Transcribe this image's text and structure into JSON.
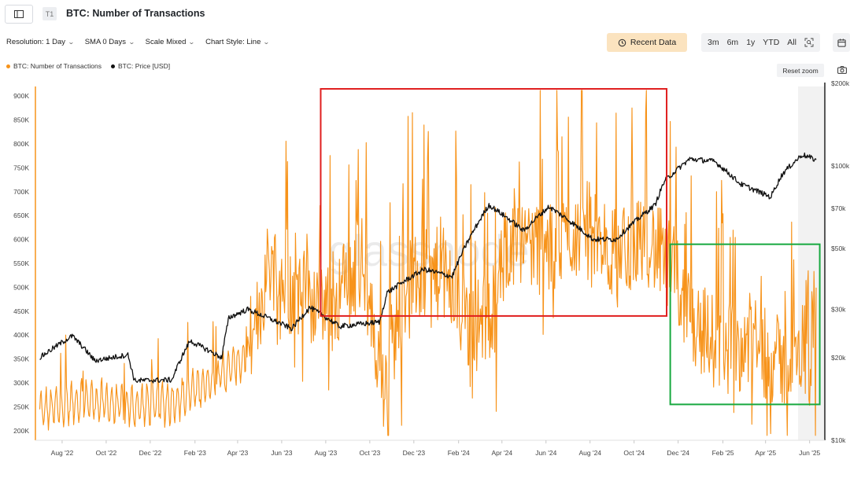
{
  "header": {
    "tier_badge": "T1",
    "title": "BTC: Number of Transactions"
  },
  "controls": {
    "resolution": "Resolution: 1 Day",
    "sma": "SMA 0 Days",
    "scale": "Scale Mixed",
    "chart_style": "Chart Style: Line"
  },
  "recent_data_label": "Recent Data",
  "ranges": [
    "3m",
    "6m",
    "1y",
    "YTD",
    "All"
  ],
  "reset_zoom_label": "Reset zoom",
  "watermark": "glassnode",
  "colors": {
    "transactions": "#f7931a",
    "price": "#111111",
    "red_box": "#e01e1e",
    "green_box": "#18a940",
    "accent_button": "#fbe3bf"
  },
  "icons": [
    "sidebar-toggle-icon",
    "history-icon",
    "zoom-icon",
    "calendar-icon",
    "camera-icon",
    "chevron-down-icon"
  ],
  "chart_data": {
    "type": "line",
    "series": [
      {
        "name": "BTC: Number of Transactions",
        "color": "#f7931a",
        "axis": "left"
      },
      {
        "name": "BTC: Price [USD]",
        "color": "#111111",
        "axis": "right",
        "scale": "log"
      }
    ],
    "x_ticks": [
      "Aug '22",
      "Oct '22",
      "Dec '22",
      "Feb '23",
      "Apr '23",
      "Jun '23",
      "Aug '23",
      "Oct '23",
      "Dec '23",
      "Feb '24",
      "Apr '24",
      "Jun '24",
      "Aug '24",
      "Oct '24",
      "Dec '24",
      "Feb '25",
      "Apr '25",
      "Jun '25"
    ],
    "y_left_ticks": [
      "900K",
      "850K",
      "800K",
      "750K",
      "700K",
      "650K",
      "600K",
      "550K",
      "500K",
      "450K",
      "400K",
      "350K",
      "300K",
      "250K",
      "200K"
    ],
    "y_left_range": [
      180000,
      920000
    ],
    "y_right_ticks": [
      "$200k",
      "$100k",
      "$70k",
      "$50k",
      "$30k",
      "$20k",
      "$10k"
    ],
    "y_right_range": [
      10000,
      200000
    ],
    "tx_keypoints": [
      [
        "2022-07-01",
        240000
      ],
      [
        "2022-09-01",
        265000
      ],
      [
        "2022-11-01",
        250000
      ],
      [
        "2023-01-01",
        260000
      ],
      [
        "2023-03-01",
        310000
      ],
      [
        "2023-04-20",
        360000
      ],
      [
        "2023-05-15",
        550000
      ],
      [
        "2023-06-20",
        470000
      ],
      [
        "2023-08-15",
        470000
      ],
      [
        "2023-09-20",
        540000
      ],
      [
        "2023-10-20",
        290000
      ],
      [
        "2023-11-20",
        500000
      ],
      [
        "2024-01-10",
        520000
      ],
      [
        "2024-02-15",
        400000
      ],
      [
        "2024-03-20",
        440000
      ],
      [
        "2024-04-15",
        620000
      ],
      [
        "2024-06-01",
        560000
      ],
      [
        "2024-07-15",
        610000
      ],
      [
        "2024-09-01",
        560000
      ],
      [
        "2024-10-15",
        600000
      ],
      [
        "2024-11-25",
        520000
      ],
      [
        "2024-12-20",
        420000
      ],
      [
        "2025-02-01",
        360000
      ],
      [
        "2025-03-15",
        380000
      ],
      [
        "2025-04-20",
        330000
      ],
      [
        "2025-05-20",
        340000
      ],
      [
        "2025-06-01",
        500000
      ],
      [
        "2025-06-10",
        420000
      ]
    ],
    "price_keypoints": [
      [
        "2022-07-01",
        20000
      ],
      [
        "2022-08-15",
        24000
      ],
      [
        "2022-09-15",
        19500
      ],
      [
        "2022-10-31",
        20500
      ],
      [
        "2022-11-09",
        16500
      ],
      [
        "2022-12-31",
        16600
      ],
      [
        "2023-01-25",
        23000
      ],
      [
        "2023-03-10",
        20000
      ],
      [
        "2023-03-20",
        28000
      ],
      [
        "2023-04-15",
        30000
      ],
      [
        "2023-06-15",
        25500
      ],
      [
        "2023-07-10",
        30500
      ],
      [
        "2023-08-20",
        26000
      ],
      [
        "2023-10-15",
        27000
      ],
      [
        "2023-10-25",
        34500
      ],
      [
        "2023-12-15",
        42000
      ],
      [
        "2024-01-23",
        39500
      ],
      [
        "2024-02-28",
        62000
      ],
      [
        "2024-03-14",
        72000
      ],
      [
        "2024-05-01",
        58000
      ],
      [
        "2024-06-05",
        71000
      ],
      [
        "2024-08-05",
        54000
      ],
      [
        "2024-09-06",
        54000
      ],
      [
        "2024-10-30",
        72000
      ],
      [
        "2024-11-12",
        88000
      ],
      [
        "2024-12-17",
        106000
      ],
      [
        "2025-01-20",
        104000
      ],
      [
        "2025-02-25",
        86000
      ],
      [
        "2025-04-08",
        77000
      ],
      [
        "2025-04-25",
        94000
      ],
      [
        "2025-05-22",
        110000
      ],
      [
        "2025-06-10",
        105000
      ]
    ],
    "highlight_boxes": [
      {
        "color": "#e01e1e",
        "x_from": "2023-07-25",
        "x_to": "2024-11-15",
        "y_from": 440000,
        "y_to": 915000
      },
      {
        "color": "#18a940",
        "x_from": "2024-11-20",
        "x_to": "2025-06-15",
        "y_from": 255000,
        "y_to": 590000
      }
    ],
    "grid": false,
    "legend_placement": "top-left"
  }
}
